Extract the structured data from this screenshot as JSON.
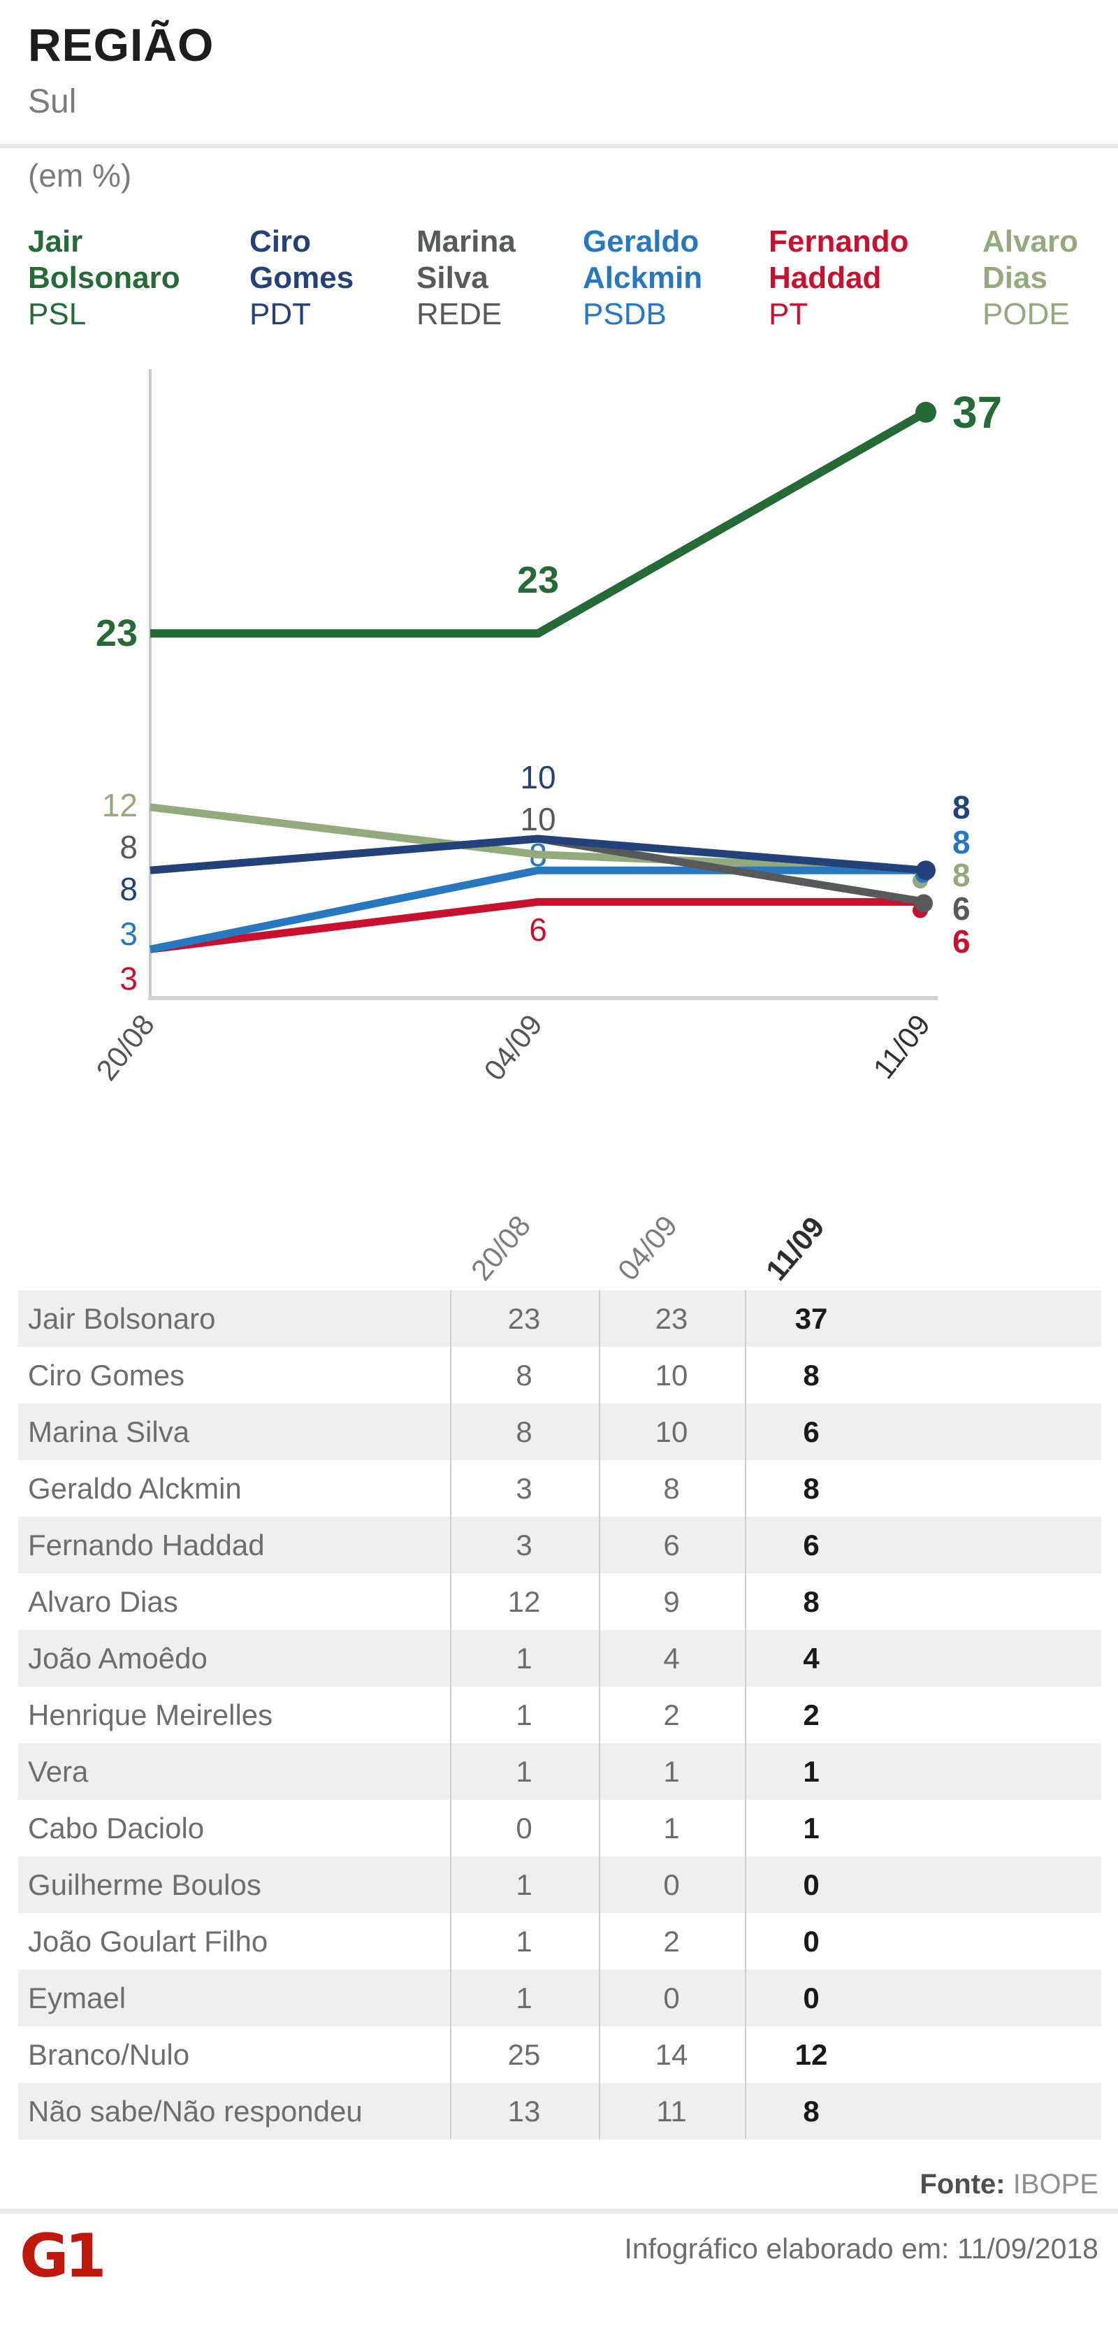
{
  "header": {
    "title": "REGIÃO",
    "subtitle": "Sul",
    "unit": "(em %)"
  },
  "legend": [
    {
      "first": "Jair",
      "last": "Bolsonaro",
      "party": "PSL",
      "color": "#266a38"
    },
    {
      "first": "Ciro",
      "last": "Gomes",
      "party": "PDT",
      "color": "#24427a"
    },
    {
      "first": "Marina",
      "last": "Silva",
      "party": "REDE",
      "color": "#58595b"
    },
    {
      "first": "Geraldo",
      "last": "Alckmin",
      "party": "PSDB",
      "color": "#2878c0"
    },
    {
      "first": "Fernando",
      "last": "Haddad",
      "party": "PT",
      "color": "#c9112f"
    },
    {
      "first": "Alvaro",
      "last": "Dias",
      "party": "PODE",
      "color": "#93aa7c"
    }
  ],
  "chart_data": {
    "type": "line",
    "title": "REGIÃO Sul (em %)",
    "x": [
      "20/08",
      "04/09",
      "11/09"
    ],
    "ylim": [
      0,
      40
    ],
    "grid": false,
    "legend_position": "top",
    "markers": "last-point-dot",
    "series": [
      {
        "name": "Jair Bolsonaro",
        "party": "PSL",
        "color": "#266a38",
        "values": [
          23,
          23,
          37
        ]
      },
      {
        "name": "Ciro Gomes",
        "party": "PDT",
        "color": "#24427a",
        "values": [
          8,
          10,
          8
        ]
      },
      {
        "name": "Marina Silva",
        "party": "REDE",
        "color": "#58595b",
        "values": [
          8,
          10,
          6
        ]
      },
      {
        "name": "Geraldo Alckmin",
        "party": "PSDB",
        "color": "#2878c0",
        "values": [
          3,
          8,
          8
        ]
      },
      {
        "name": "Fernando Haddad",
        "party": "PT",
        "color": "#c9112f",
        "values": [
          3,
          6,
          6
        ]
      },
      {
        "name": "Alvaro Dias",
        "party": "PODE",
        "color": "#93aa7c",
        "values": [
          12,
          9,
          8
        ]
      }
    ]
  },
  "table": {
    "columns": [
      "20/08",
      "04/09",
      "11/09"
    ],
    "rows": [
      {
        "name": "Jair Bolsonaro",
        "values": [
          "23",
          "23",
          "37"
        ]
      },
      {
        "name": "Ciro Gomes",
        "values": [
          "8",
          "10",
          "8"
        ]
      },
      {
        "name": "Marina Silva",
        "values": [
          "8",
          "10",
          "6"
        ]
      },
      {
        "name": "Geraldo Alckmin",
        "values": [
          "3",
          "8",
          "8"
        ]
      },
      {
        "name": "Fernando Haddad",
        "values": [
          "3",
          "6",
          "6"
        ]
      },
      {
        "name": "Alvaro Dias",
        "values": [
          "12",
          "9",
          "8"
        ]
      },
      {
        "name": "João Amoêdo",
        "values": [
          "1",
          "4",
          "4"
        ]
      },
      {
        "name": "Henrique Meirelles",
        "values": [
          "1",
          "2",
          "2"
        ]
      },
      {
        "name": "Vera",
        "values": [
          "1",
          "1",
          "1"
        ]
      },
      {
        "name": "Cabo Daciolo",
        "values": [
          "0",
          "1",
          "1"
        ]
      },
      {
        "name": "Guilherme Boulos",
        "values": [
          "1",
          "0",
          "0"
        ]
      },
      {
        "name": "João Goulart Filho",
        "values": [
          "1",
          "2",
          "0"
        ]
      },
      {
        "name": "Eymael",
        "values": [
          "1",
          "0",
          "0"
        ]
      },
      {
        "name": "Branco/Nulo",
        "values": [
          "25",
          "14",
          "12"
        ]
      },
      {
        "name": "Não sabe/Não respondeu",
        "values": [
          "13",
          "11",
          "8"
        ]
      }
    ]
  },
  "footer": {
    "source_label": "Fonte:",
    "source_value": "IBOPE",
    "credit": "Infográfico elaborado em: 11/09/2018",
    "logo_text": "G1",
    "logo_color": "#c0180c"
  }
}
